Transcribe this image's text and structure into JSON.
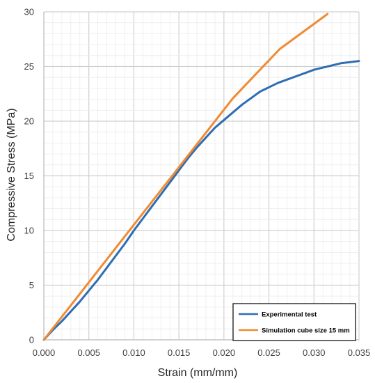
{
  "chart_data": {
    "type": "line",
    "xlabel": "Strain (mm/mm)",
    "ylabel": "Compressive Stress (MPa)",
    "xlim": [
      0.0,
      0.035
    ],
    "ylim": [
      0,
      30
    ],
    "xticks": [
      "0.000",
      "0.005",
      "0.010",
      "0.015",
      "0.020",
      "0.025",
      "0.030",
      "0.035"
    ],
    "yticks": [
      "0",
      "5",
      "10",
      "15",
      "20",
      "25",
      "30"
    ],
    "grid": "major and minor",
    "legend_position": "bottom-right",
    "series": [
      {
        "name": "Experimental test",
        "color": "#2e6db4",
        "x": [
          0.0,
          0.001,
          0.002,
          0.003,
          0.004,
          0.005,
          0.006,
          0.007,
          0.008,
          0.009,
          0.01,
          0.011,
          0.012,
          0.013,
          0.014,
          0.015,
          0.016,
          0.017,
          0.018,
          0.019,
          0.02,
          0.021,
          0.022,
          0.023,
          0.024,
          0.025,
          0.026,
          0.027,
          0.028,
          0.029,
          0.03,
          0.031,
          0.032,
          0.033,
          0.034,
          0.035
        ],
        "y": [
          0.0,
          0.9,
          1.7,
          2.6,
          3.5,
          4.5,
          5.5,
          6.6,
          7.7,
          8.8,
          10.0,
          11.1,
          12.2,
          13.3,
          14.4,
          15.5,
          16.6,
          17.6,
          18.5,
          19.4,
          20.1,
          20.8,
          21.5,
          22.1,
          22.7,
          23.1,
          23.5,
          23.8,
          24.1,
          24.4,
          24.7,
          24.9,
          25.1,
          25.3,
          25.4,
          25.5
        ]
      },
      {
        "name": "Simulation cube size 15 mm",
        "color": "#f08a33",
        "x": [
          0.0,
          0.021,
          0.0262,
          0.0315
        ],
        "y": [
          0.0,
          22.1,
          26.6,
          29.8
        ]
      }
    ]
  }
}
